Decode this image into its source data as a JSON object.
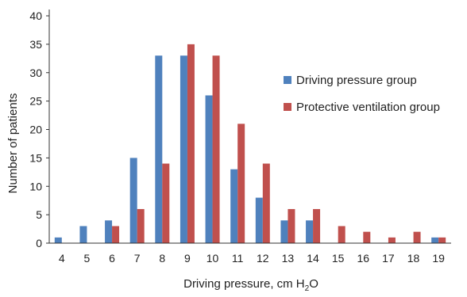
{
  "chart_data": {
    "type": "bar",
    "title": "",
    "xlabel": "Driving pressure, cm H",
    "xlabel_sub": "2",
    "xlabel_tail": "O",
    "ylabel": "Number of patients",
    "ylim": [
      0,
      40
    ],
    "yticks": [
      "0",
      "5",
      "10",
      "15",
      "20",
      "25",
      "30",
      "35",
      "40"
    ],
    "grid": false,
    "legend_position": "right",
    "categories": [
      "4",
      "5",
      "6",
      "7",
      "8",
      "9",
      "10",
      "11",
      "12",
      "13",
      "14",
      "15",
      "16",
      "17",
      "18",
      "19"
    ],
    "series": [
      {
        "name": "Driving pressure group",
        "color": "#4f81bd",
        "values": [
          1,
          3,
          4,
          15,
          33,
          33,
          26,
          13,
          8,
          4,
          4,
          0,
          0,
          0,
          0,
          1
        ]
      },
      {
        "name": "Protective ventilation group",
        "color": "#c0504d",
        "values": [
          0,
          0,
          3,
          6,
          14,
          35,
          33,
          21,
          14,
          6,
          6,
          3,
          2,
          1,
          2,
          1
        ]
      }
    ]
  }
}
